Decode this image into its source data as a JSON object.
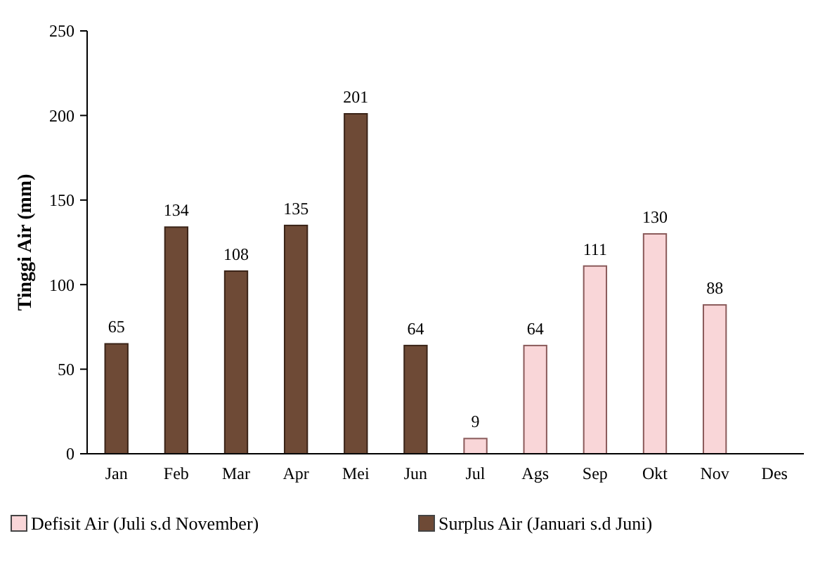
{
  "chart_data": {
    "type": "bar",
    "ylabel": "Tinggi Air (mm)",
    "categories": [
      "Jan",
      "Feb",
      "Mar",
      "Apr",
      "Mei",
      "Jun",
      "Jul",
      "Ags",
      "Sep",
      "Okt",
      "Nov",
      "Des"
    ],
    "series": [
      {
        "name": "Defisit Air (Juli s.d November)",
        "color": "#f9d6d8",
        "values": [
          null,
          null,
          null,
          null,
          null,
          null,
          9,
          64,
          111,
          130,
          88,
          null
        ]
      },
      {
        "name": "Surplus Air (Januari s.d  Juni)",
        "color": "#6e4a36",
        "values": [
          65,
          134,
          108,
          135,
          201,
          64,
          null,
          null,
          null,
          null,
          null,
          null
        ]
      }
    ],
    "ylim": [
      0,
      250
    ],
    "yticks": [
      0,
      50,
      100,
      150,
      200,
      250
    ],
    "grid": false,
    "legend": "bottom",
    "data_labels": true
  }
}
